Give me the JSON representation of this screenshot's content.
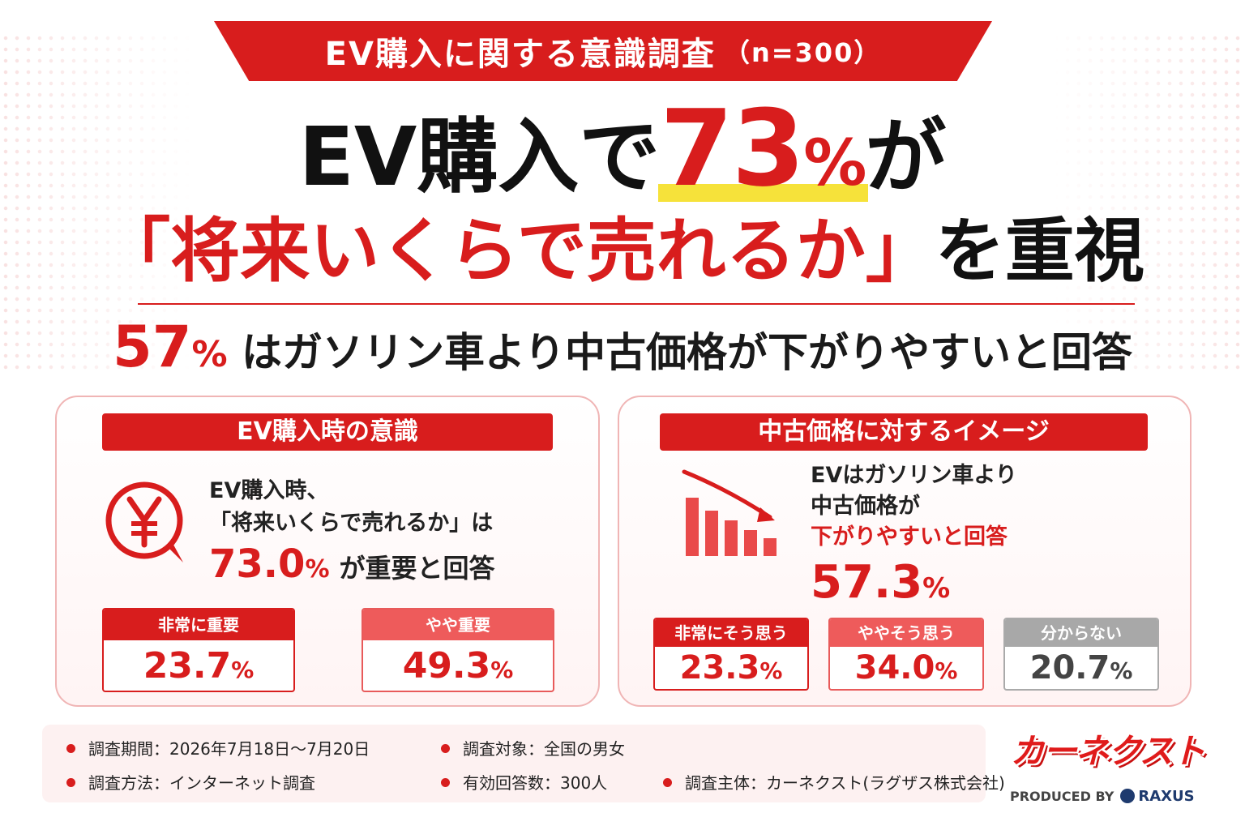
{
  "banner": {
    "title": "EV購入に関する意識調査",
    "sample": "（n=300）"
  },
  "headline": {
    "line1_pre": "EV購入で",
    "line1_num": "73",
    "line1_pct": "%",
    "line1_post": "が",
    "line2_quote": "「将来いくらで売れるか」",
    "line2_post": "を重視"
  },
  "sub": {
    "num": "57",
    "pct": "%",
    "text": "はガソリン車より中古価格が下がりやすいと回答"
  },
  "left_panel": {
    "title": "EV購入時の意識",
    "text_line1": "EV購入時、",
    "text_line2": "「将来いくらで売れるか」は",
    "stat_num": "73.0",
    "stat_pct": "%",
    "stat_rest": "が重要と回答",
    "boxes": [
      {
        "label": "非常に重要",
        "value": "23.7",
        "pct": "%"
      },
      {
        "label": "やや重要",
        "value": "49.3",
        "pct": "%"
      }
    ]
  },
  "right_panel": {
    "title": "中古価格に対するイメージ",
    "text_line1": "EVはガソリン車より",
    "text_line2": "中古価格が",
    "text_line3": "下がりやすいと回答",
    "stat_num": "57.3",
    "stat_pct": "%",
    "boxes": [
      {
        "label": "非常にそう思う",
        "value": "23.3",
        "pct": "%"
      },
      {
        "label": "ややそう思う",
        "value": "34.0",
        "pct": "%"
      },
      {
        "label": "分からない",
        "value": "20.7",
        "pct": "%"
      }
    ]
  },
  "footer": {
    "period": "調査期間：2026年7月18日～7月20日",
    "target": "調査対象：全国の男女",
    "method": "調査方法：インターネット調査",
    "responses": "有効回答数：300人",
    "organizer": "調査主体：カーネクスト(ラグザス株式会社)"
  },
  "logo": {
    "name": "カーネクスト",
    "produced_by": "PRODUCED BY",
    "company": "RAXUS"
  },
  "colors": {
    "accent": "#d81d1d",
    "highlight": "#f6e23a",
    "light_red": "#ee5b5b",
    "gray": "#a8a8a8"
  },
  "icons": {
    "left": "yen-speech-icon",
    "right": "declining-bar-chart-icon"
  }
}
